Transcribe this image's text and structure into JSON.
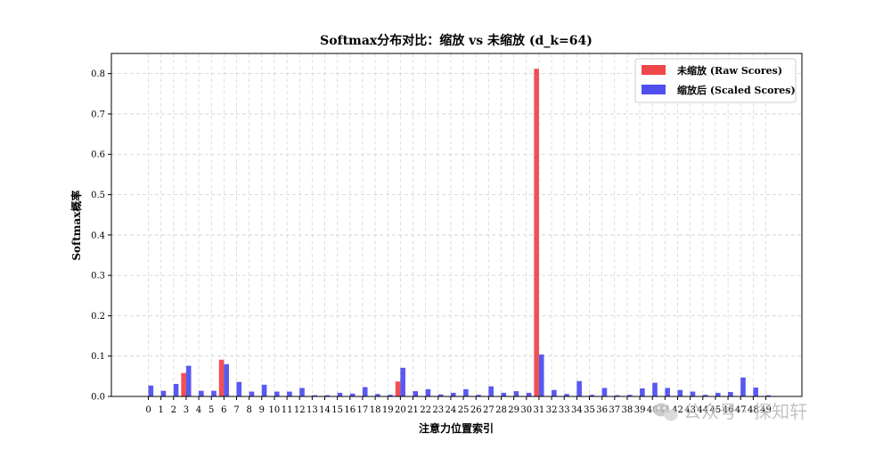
{
  "chart_data": {
    "type": "bar",
    "title": "Softmax分布对比：缩放 vs 未缩放 (d_k=64)",
    "xlabel": "注意力位置索引",
    "ylabel": "Softmax概率",
    "ylim": [
      0,
      0.85
    ],
    "yticks": [
      0.0,
      0.1,
      0.2,
      0.3,
      0.4,
      0.5,
      0.6,
      0.7,
      0.8
    ],
    "grid": true,
    "legend_position": "top-right",
    "categories": [
      "0",
      "1",
      "2",
      "3",
      "4",
      "5",
      "6",
      "7",
      "8",
      "9",
      "10",
      "11",
      "12",
      "13",
      "14",
      "15",
      "16",
      "17",
      "18",
      "19",
      "20",
      "21",
      "22",
      "23",
      "24",
      "25",
      "26",
      "27",
      "28",
      "29",
      "30",
      "31",
      "32",
      "33",
      "34",
      "35",
      "36",
      "37",
      "38",
      "39",
      "40",
      "41",
      "42",
      "43",
      "44",
      "45",
      "46",
      "47",
      "48",
      "49"
    ],
    "series": [
      {
        "name": "未缩放 (Raw Scores)",
        "color": "#f0474b",
        "values": [
          0.0,
          0.0,
          0.0,
          0.058,
          0.0,
          0.0,
          0.091,
          0.0,
          0.0,
          0.0,
          0.0,
          0.0,
          0.0,
          0.0,
          0.0,
          0.0,
          0.0,
          0.0,
          0.0,
          0.0,
          0.037,
          0.0,
          0.0,
          0.0,
          0.0,
          0.0,
          0.0,
          0.0,
          0.0,
          0.0,
          0.0,
          0.812,
          0.0,
          0.0,
          0.0,
          0.0,
          0.0,
          0.0,
          0.0,
          0.0,
          0.0,
          0.0,
          0.0,
          0.0,
          0.0,
          0.0,
          0.0,
          0.0,
          0.0,
          0.0
        ]
      },
      {
        "name": "缩放后 (Scaled Scores)",
        "color": "#5050f0",
        "values": [
          0.027,
          0.014,
          0.031,
          0.076,
          0.014,
          0.014,
          0.08,
          0.036,
          0.012,
          0.029,
          0.012,
          0.012,
          0.021,
          0.003,
          0.003,
          0.009,
          0.007,
          0.023,
          0.006,
          0.004,
          0.071,
          0.013,
          0.018,
          0.005,
          0.009,
          0.018,
          0.004,
          0.025,
          0.009,
          0.013,
          0.009,
          0.104,
          0.016,
          0.006,
          0.038,
          0.004,
          0.021,
          0.003,
          0.004,
          0.02,
          0.034,
          0.021,
          0.016,
          0.012,
          0.004,
          0.009,
          0.011,
          0.047,
          0.022,
          0.003
        ]
      }
    ]
  },
  "watermark": {
    "icon": "wechat-icon",
    "text": "公众号 · 探知轩"
  }
}
